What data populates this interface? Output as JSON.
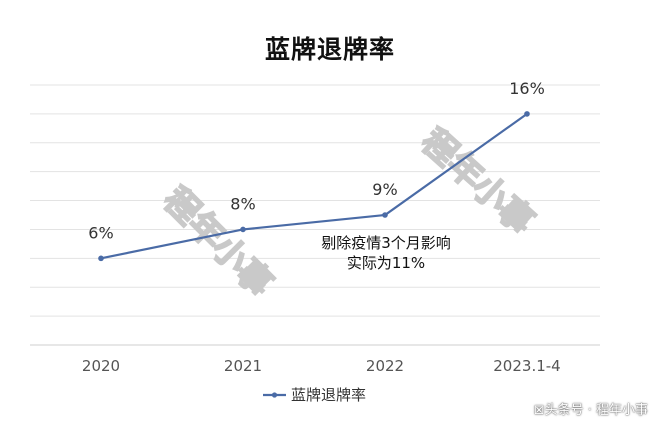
{
  "chart_data": {
    "type": "line",
    "title": "蓝牌退牌率",
    "categories": [
      "2020",
      "2021",
      "2022",
      "2023.1-4"
    ],
    "series": [
      {
        "name": "蓝牌退牌率",
        "values": [
          6,
          8,
          9,
          16
        ],
        "labels": [
          "6%",
          "8%",
          "9%",
          "16%"
        ],
        "color": "#4a6ba6"
      }
    ],
    "ylim": [
      0,
      18
    ],
    "grid": true,
    "legend_position": "bottom",
    "annotation": {
      "line1": "剔除疫情3个月影响",
      "line2": "实际为11%"
    }
  },
  "watermark": {
    "text": "程年小事",
    "color": "#c9c9c9"
  },
  "footer": {
    "credit": "⊠头条号 · 程年小事"
  }
}
